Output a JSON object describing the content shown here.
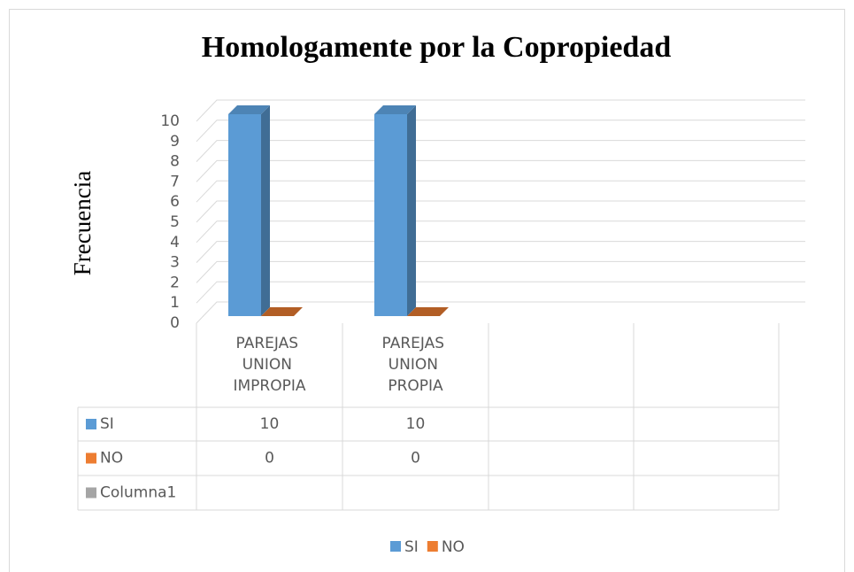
{
  "chart_data": {
    "type": "bar3d",
    "title": "Homologamente por la Copropiedad",
    "y_label": "Frecuencia",
    "categories": [
      "PAREJAS UNION IMPROPIA",
      "PAREJAS UNION PROPIA",
      null,
      null
    ],
    "series": [
      {
        "name": "SI",
        "color": "#5b9bd5",
        "values": [
          10,
          10,
          null,
          null
        ]
      },
      {
        "name": "NO",
        "color": "#ed7d31",
        "values": [
          0,
          0,
          null,
          null
        ]
      },
      {
        "name": "Columna1",
        "color": "#a5a5a5",
        "values": [
          null,
          null,
          null,
          null
        ]
      }
    ],
    "ylim": [
      0,
      10
    ],
    "yticks": [
      0,
      1,
      2,
      3,
      4,
      5,
      6,
      7,
      8,
      9,
      10
    ],
    "grid": true,
    "legend": "bottom",
    "data_table": true
  }
}
